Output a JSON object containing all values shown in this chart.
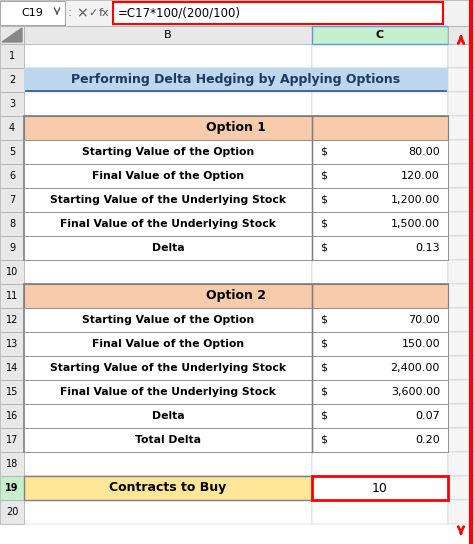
{
  "title": "Performing Delta Hedging by Applying Options",
  "formula_bar_cell": "C19",
  "formula_bar_formula": "=C17*100/(200/100)",
  "option1_header": "Option 1",
  "option1_rows": [
    [
      "Starting Value of the Option",
      "$",
      "80.00"
    ],
    [
      "Final Value of the Option",
      "$",
      "120.00"
    ],
    [
      "Starting Value of the Underlying Stock",
      "$",
      "1,200.00"
    ],
    [
      "Final Value of the Underlying Stock",
      "$",
      "1,500.00"
    ],
    [
      "Delta",
      "$",
      "0.13"
    ]
  ],
  "option2_header": "Option 2",
  "option2_rows": [
    [
      "Starting Value of the Option",
      "$",
      "70.00"
    ],
    [
      "Final Value of the Option",
      "$",
      "150.00"
    ],
    [
      "Starting Value of the Underlying Stock",
      "$",
      "2,400.00"
    ],
    [
      "Final Value of the Underlying Stock",
      "$",
      "3,600.00"
    ],
    [
      "Delta",
      "$",
      "0.07"
    ],
    [
      "Total Delta",
      "$",
      "0.20"
    ]
  ],
  "contracts_label": "Contracts to Buy",
  "contracts_value": "10",
  "bg_color": "#FFFFFF",
  "header_bg": "#F8CBAD",
  "title_color": "#1F3864",
  "title_bg": "#BDD7EE",
  "contracts_bg": "#FFE699",
  "red_border": "#FF0000",
  "col_header_bg": "#E8E8E8",
  "row_header_bg": "#E8E8E8",
  "col_c_header_bg": "#C6EFCE",
  "grid_color": "#C0C0C0",
  "formula_border": "#FF0000",
  "dark_border": "#595959"
}
